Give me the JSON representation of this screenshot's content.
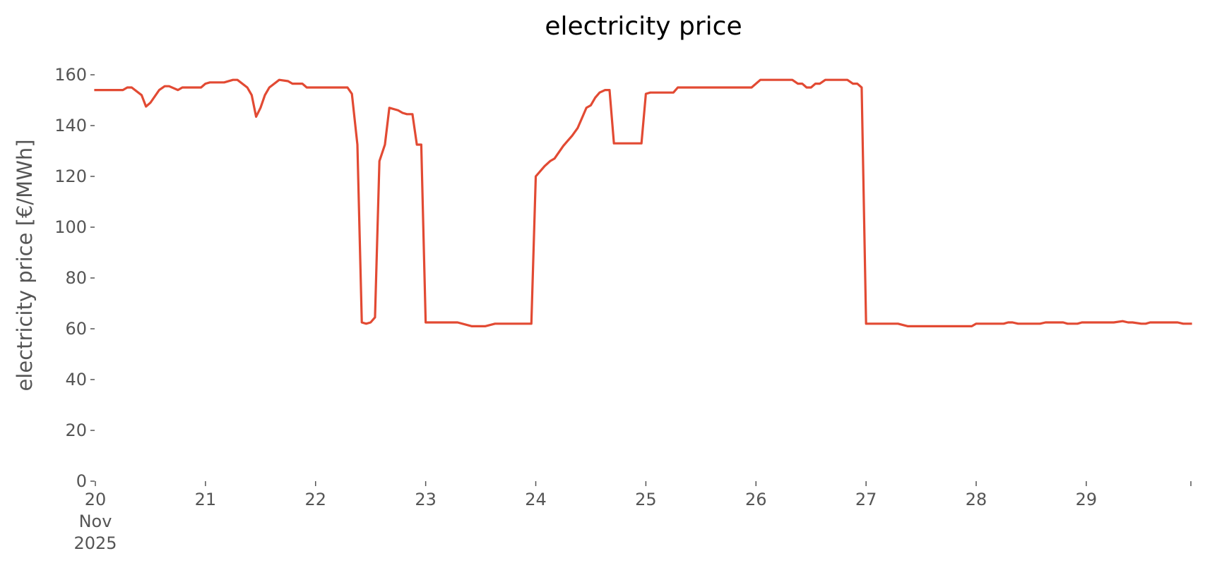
{
  "chart_data": {
    "type": "line",
    "title": "electricity price",
    "xlabel": "",
    "ylabel": "electricity price [€/MWh]",
    "ylim": [
      0,
      170
    ],
    "yticks": [
      0,
      20,
      40,
      60,
      80,
      100,
      120,
      140,
      160
    ],
    "xlim": [
      20.0,
      29.95
    ],
    "xticks": [
      {
        "value": 20,
        "lines": [
          "20",
          "Nov",
          "2025"
        ]
      },
      {
        "value": 21,
        "lines": [
          "21"
        ]
      },
      {
        "value": 22,
        "lines": [
          "22"
        ]
      },
      {
        "value": 23,
        "lines": [
          "23"
        ]
      },
      {
        "value": 24,
        "lines": [
          "24"
        ]
      },
      {
        "value": 25,
        "lines": [
          "25"
        ]
      },
      {
        "value": 26,
        "lines": [
          "26"
        ]
      },
      {
        "value": 27,
        "lines": [
          "27"
        ]
      },
      {
        "value": 28,
        "lines": [
          "28"
        ]
      },
      {
        "value": 29,
        "lines": [
          "29"
        ]
      }
    ],
    "x_unit": "day of November 2025",
    "grid": false,
    "color": "#e24a33",
    "series": [
      {
        "name": "",
        "x": [
          20.0,
          20.25,
          20.29,
          20.33,
          20.42,
          20.46,
          20.5,
          20.58,
          20.63,
          20.67,
          20.75,
          20.79,
          20.83,
          20.96,
          21.0,
          21.04,
          21.17,
          21.25,
          21.29,
          21.38,
          21.42,
          21.46,
          21.5,
          21.54,
          21.58,
          21.67,
          21.75,
          21.79,
          21.88,
          21.92,
          21.96,
          22.29,
          22.33,
          22.38,
          22.42,
          22.46,
          22.5,
          22.54,
          22.58,
          22.63,
          22.67,
          22.75,
          22.79,
          22.83,
          22.88,
          22.92,
          22.96,
          23.0,
          23.29,
          23.42,
          23.54,
          23.63,
          23.67,
          23.96,
          24.0,
          24.08,
          24.13,
          24.17,
          24.25,
          24.29,
          24.33,
          24.38,
          24.42,
          24.46,
          24.5,
          24.54,
          24.58,
          24.63,
          24.67,
          24.71,
          24.75,
          24.96,
          25.0,
          25.04,
          25.25,
          25.29,
          25.96,
          26.04,
          26.33,
          26.38,
          26.42,
          26.46,
          26.5,
          26.54,
          26.58,
          26.63,
          26.71,
          26.83,
          26.88,
          26.92,
          26.96,
          27.0,
          27.29,
          27.38,
          27.96,
          28.0,
          28.25,
          28.29,
          28.33,
          28.38,
          28.5,
          28.58,
          28.63,
          28.79,
          28.83,
          28.92,
          28.96,
          29.08,
          29.25,
          29.33,
          29.38,
          29.42,
          29.5,
          29.54,
          29.58,
          29.83,
          29.88,
          29.95
        ],
        "y": [
          154,
          154,
          155,
          155,
          152,
          147.5,
          149,
          154,
          155.5,
          155.5,
          154,
          155,
          155,
          155,
          156.5,
          157,
          157,
          158,
          158,
          155,
          152,
          143.5,
          147,
          152,
          155,
          158,
          157.5,
          156.5,
          156.5,
          155,
          155,
          155,
          152.5,
          132.5,
          62.5,
          62,
          62.5,
          64.5,
          126,
          132.5,
          147,
          146,
          145,
          144.5,
          144.5,
          132.5,
          132.5,
          62.5,
          62.5,
          61,
          61,
          62,
          62,
          62,
          120,
          124,
          126,
          127,
          132,
          134,
          136,
          139,
          143,
          147,
          148,
          151,
          153,
          154,
          154,
          133,
          133,
          133,
          152.5,
          153,
          153,
          155,
          155,
          158,
          158,
          156.5,
          156.5,
          155,
          155,
          156.5,
          156.5,
          158,
          158,
          158,
          156.5,
          156.5,
          155,
          62,
          62,
          61,
          61,
          62,
          62,
          62.5,
          62.5,
          62,
          62,
          62,
          62.5,
          62.5,
          62,
          62,
          62.5,
          62.5,
          62.5,
          63,
          62.5,
          62.5,
          62,
          62,
          62.5,
          62.5,
          62,
          62
        ]
      }
    ]
  }
}
